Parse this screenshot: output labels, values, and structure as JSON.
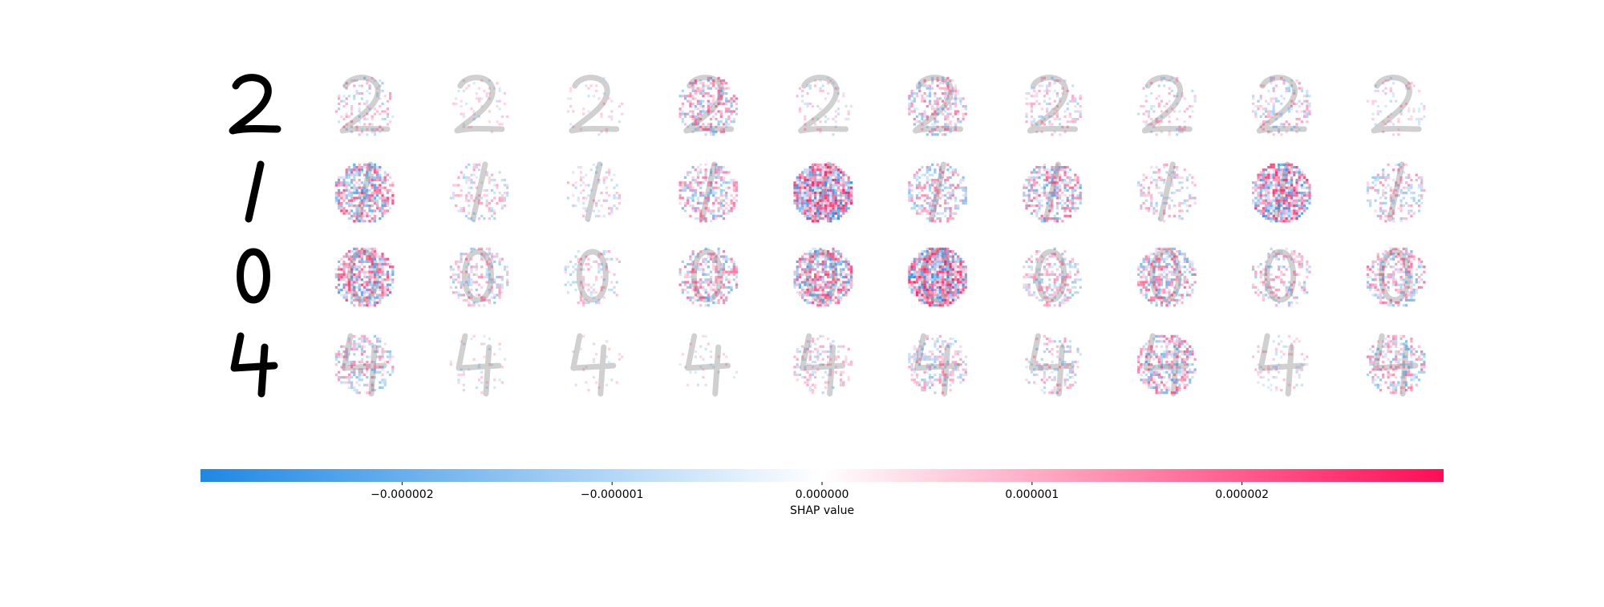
{
  "chart_data": {
    "type": "image_colorbar",
    "xlabel": "SHAP value",
    "xlim": [
      -2.96e-06,
      2.96e-06
    ],
    "xticks": [
      {
        "value": -2e-06,
        "label": "−0.000002"
      },
      {
        "value": -1e-06,
        "label": "−0.000001"
      },
      {
        "value": 0,
        "label": "0.000000"
      },
      {
        "value": 1e-06,
        "label": "0.000001"
      },
      {
        "value": 2e-06,
        "label": "0.000002"
      }
    ],
    "colormap": [
      "#1e88e5",
      "#ffffff",
      "#ff0d57"
    ]
  }
}
